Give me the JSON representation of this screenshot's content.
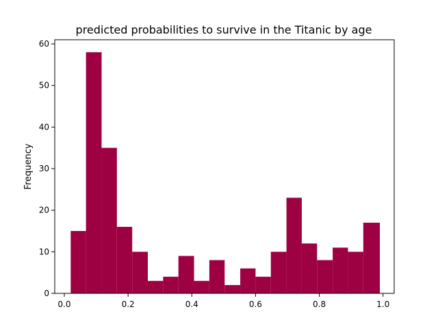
{
  "chart_data": {
    "type": "bar",
    "title": "predicted probabilities to survive in the Titanic by age",
    "xlabel": "",
    "ylabel": "Frequency",
    "xlim": [
      -0.03,
      1.035
    ],
    "ylim": [
      0,
      61
    ],
    "xticks": [
      0.0,
      0.2,
      0.4,
      0.6,
      0.8,
      1.0
    ],
    "xtick_labels": [
      "0.0",
      "0.2",
      "0.4",
      "0.6",
      "0.8",
      "1.0"
    ],
    "yticks": [
      0,
      10,
      20,
      30,
      40,
      50,
      60
    ],
    "ytick_labels": [
      "0",
      "10",
      "20",
      "30",
      "40",
      "50",
      "60"
    ],
    "grid": false,
    "bar_color": "#9e0142",
    "series": [
      {
        "bin_edges": [
          0.02,
          0.068,
          0.117,
          0.165,
          0.213,
          0.262,
          0.31,
          0.358,
          0.407,
          0.455,
          0.503,
          0.552,
          0.6,
          0.648,
          0.697,
          0.745,
          0.793,
          0.842,
          0.89,
          0.938,
          0.99
        ],
        "values": [
          15,
          58,
          35,
          16,
          10,
          3,
          4,
          9,
          3,
          8,
          2,
          6,
          4,
          10,
          23,
          12,
          8,
          11,
          10,
          17
        ]
      }
    ]
  }
}
